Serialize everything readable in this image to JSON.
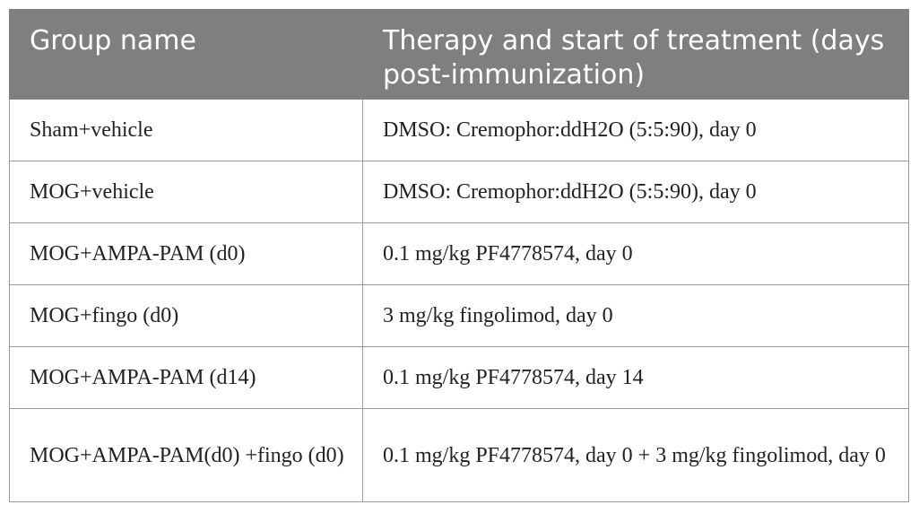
{
  "table": {
    "headers": [
      "Group name",
      "Therapy and start of treatment (days post-immunization)"
    ],
    "rows": [
      [
        "Sham+vehicle",
        "DMSO: Cremophor:ddH2O (5:5:90), day 0"
      ],
      [
        "MOG+vehicle",
        "DMSO: Cremophor:ddH2O (5:5:90), day 0"
      ],
      [
        "MOG+AMPA-PAM (d0)",
        "0.1 mg/kg PF4778574, day 0"
      ],
      [
        "MOG+fingo (d0)",
        "3 mg/kg fingolimod, day 0"
      ],
      [
        "MOG+AMPA-PAM (d14)",
        "0.1 mg/kg PF4778574, day 14"
      ],
      [
        "MOG+AMPA-PAM(d0) +fingo (d0)",
        "0.1 mg/kg PF4778574, day 0 + 3 mg/kg fingolimod, day 0"
      ]
    ]
  }
}
